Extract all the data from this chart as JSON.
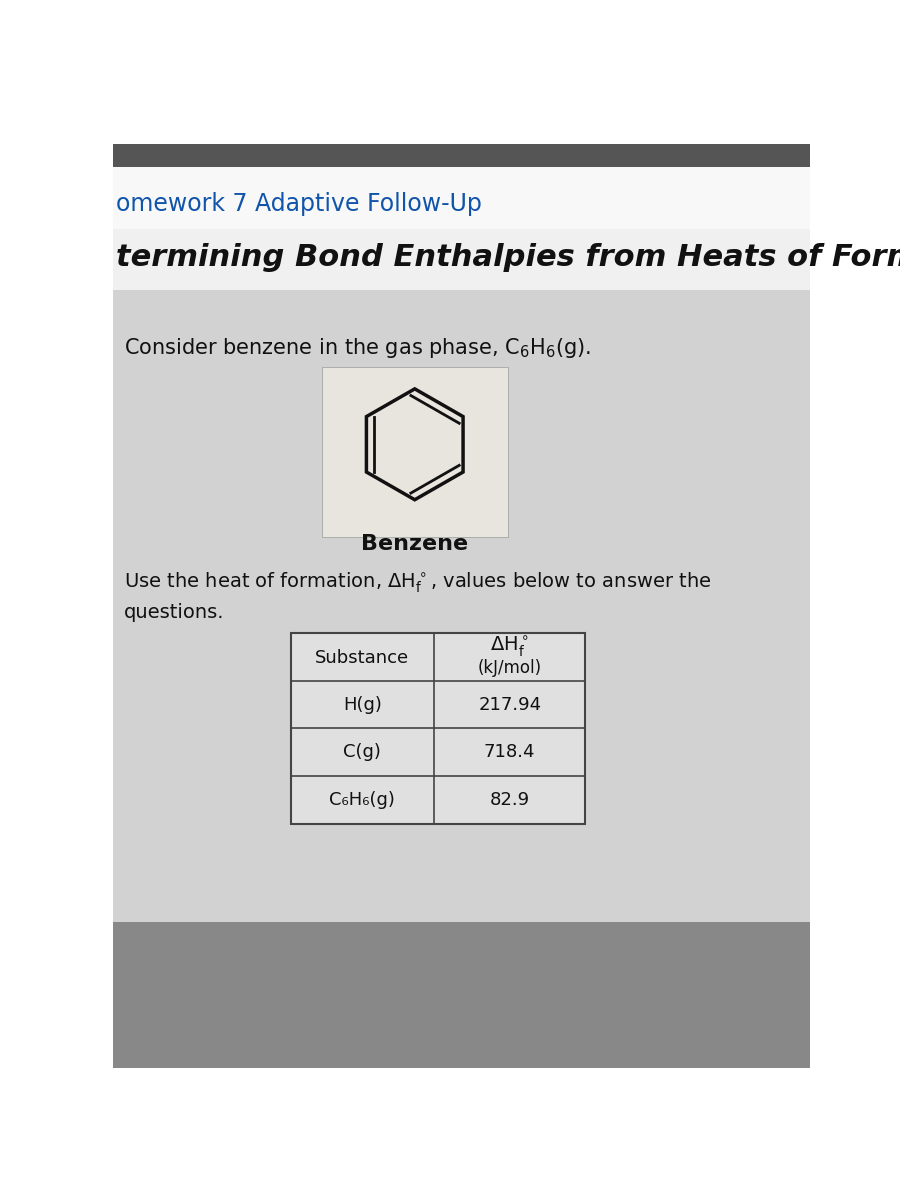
{
  "title1": "omework 7 Adaptive Follow-Up",
  "title1_color": "#1155aa",
  "title2": "termining Bond Enthalpies from Heats of Formation",
  "title2_color": "#111111",
  "benzene_label": "Benzene",
  "table_rows": [
    [
      "H(g)",
      "217.94"
    ],
    [
      "C(g)",
      "718.4"
    ],
    [
      "C₆H₆(g)",
      "82.9"
    ]
  ],
  "bg_top": "#f2f2f2",
  "bg_main": "#c8c8c8",
  "bg_content": "#d5d5d5",
  "bg_bottom": "#999999",
  "benzene_box_color": "#e0ddd8",
  "text_color": "#111111",
  "table_bg": "#e0e0e0"
}
